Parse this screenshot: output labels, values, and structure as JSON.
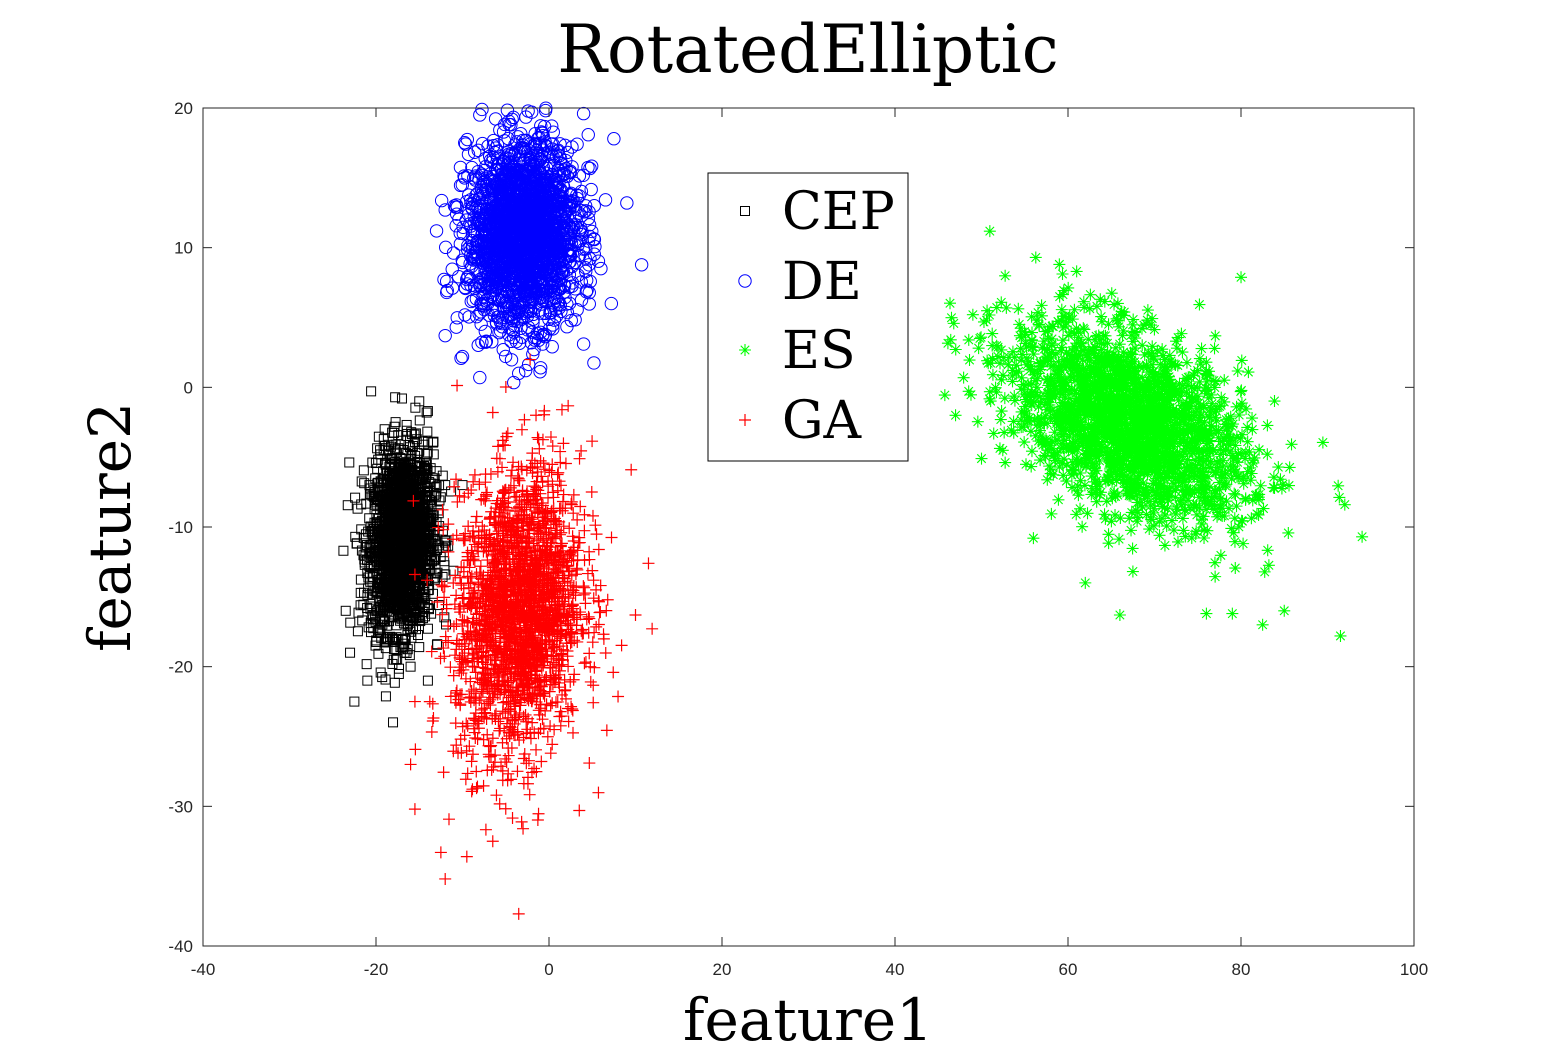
{
  "chart_data": {
    "type": "scatter",
    "title": "RotatedElliptic",
    "xlabel": "feature1",
    "ylabel": "feature2",
    "xlim": [
      -40,
      100
    ],
    "ylim": [
      -40,
      20
    ],
    "xticks": [
      -40,
      -20,
      0,
      20,
      40,
      60,
      80,
      100
    ],
    "yticks": [
      -40,
      -30,
      -20,
      -10,
      0,
      10,
      20
    ],
    "grid": false,
    "legend_position": "top-center",
    "series": [
      {
        "name": "CEP",
        "marker": "square",
        "color": "#000000",
        "distribution": {
          "mean": [
            -17,
            -11
          ],
          "std": [
            1.8,
            3.2
          ],
          "rho": 0.1,
          "n": 2200
        },
        "points": [
          [
            -22.5,
            -22.5
          ],
          [
            -15,
            -1
          ],
          [
            -17,
            -0.8
          ],
          [
            -14,
            -1.7
          ],
          [
            -23,
            -19
          ],
          [
            -21,
            -21
          ],
          [
            -14,
            -21
          ],
          [
            -16,
            -20
          ],
          [
            -23.5,
            -16
          ],
          [
            -12,
            -7
          ],
          [
            -13,
            -6
          ],
          [
            -19,
            -3
          ],
          [
            -10,
            -7
          ]
        ]
      },
      {
        "name": "DE",
        "marker": "circle",
        "color": "#0000ff",
        "distribution": {
          "mean": [
            -3,
            11
          ],
          "std": [
            3.2,
            3.2
          ],
          "rho": 0.05,
          "n": 2200
        },
        "points": [
          [
            -8,
            19.5
          ],
          [
            -2,
            19.7
          ],
          [
            4,
            19.6
          ],
          [
            7.5,
            17.8
          ],
          [
            -12,
            12.7
          ],
          [
            -13,
            11.2
          ],
          [
            9,
            13.2
          ],
          [
            -12,
            3.7
          ],
          [
            -8,
            0.7
          ],
          [
            -3.5,
            1
          ],
          [
            -10,
            2.2
          ],
          [
            4,
            3.1
          ],
          [
            6,
            8.5
          ]
        ]
      },
      {
        "name": "ES",
        "marker": "asterisk",
        "color": "#00ff00",
        "distribution": {
          "mean": [
            67,
            -2.5
          ],
          "std": [
            6.8,
            3.5
          ],
          "rho": -0.45,
          "n": 2200
        },
        "points": [
          [
            47,
            -2
          ],
          [
            49,
            5.2
          ],
          [
            59,
            8.8
          ],
          [
            61,
            8.3
          ],
          [
            91.5,
            -17.8
          ],
          [
            94,
            -10.7
          ],
          [
            92,
            -8.4
          ],
          [
            82.5,
            -17
          ],
          [
            85,
            -16
          ],
          [
            66,
            -16.3
          ],
          [
            76,
            -16.2
          ],
          [
            79,
            -16.2
          ],
          [
            62,
            -14
          ],
          [
            56,
            -10.8
          ],
          [
            50,
            -5.1
          ]
        ]
      },
      {
        "name": "GA",
        "marker": "plus",
        "color": "#ff0000",
        "distribution": {
          "mean": [
            -3.5,
            -16
          ],
          "std": [
            3.6,
            5
          ],
          "rho": 0.15,
          "n": 2200
        },
        "points": [
          [
            -3.5,
            -37.7
          ],
          [
            -12,
            -35.2
          ],
          [
            -12.5,
            -33.3
          ],
          [
            -9.5,
            -33.6
          ],
          [
            -3,
            -31.6
          ],
          [
            -6.5,
            -32.5
          ],
          [
            -15.5,
            -30.2
          ],
          [
            3.5,
            -30.3
          ],
          [
            11.5,
            -12.6
          ],
          [
            10,
            -16.3
          ],
          [
            9.5,
            -5.9
          ],
          [
            1.5,
            -1.6
          ],
          [
            -6.5,
            -1.8
          ],
          [
            -1.5,
            -2
          ],
          [
            -15.5,
            -13.4
          ],
          [
            -15.5,
            -22.5
          ],
          [
            -16,
            -27
          ]
        ]
      }
    ]
  }
}
